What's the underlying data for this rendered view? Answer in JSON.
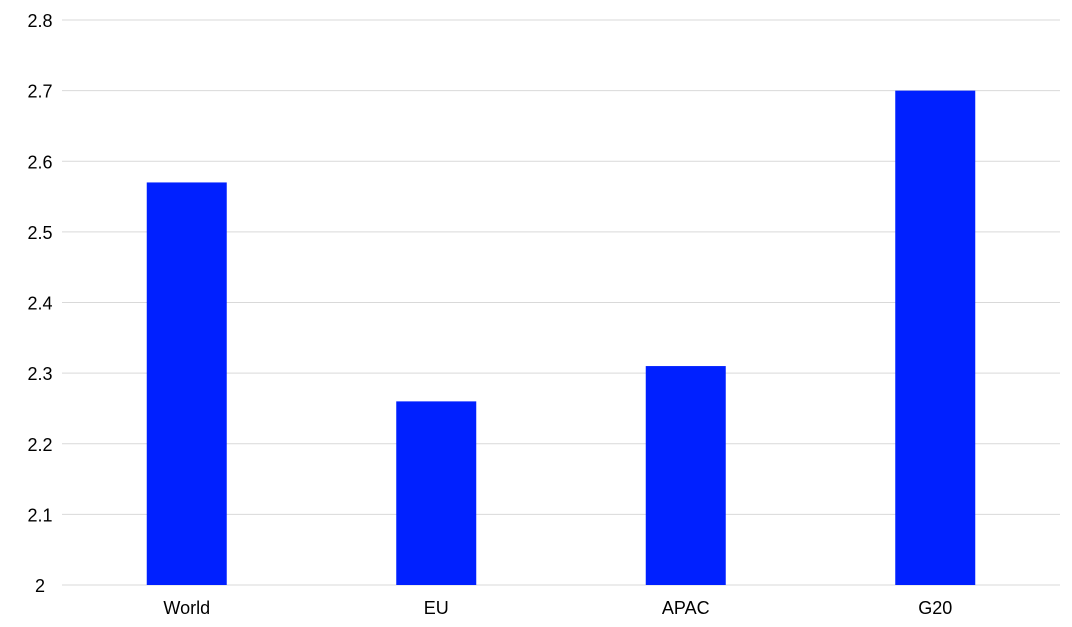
{
  "chart_data": {
    "type": "bar",
    "title": "",
    "xlabel": "",
    "ylabel": "",
    "categories": [
      "World",
      "EU",
      "APAC",
      "G20"
    ],
    "values": [
      2.57,
      2.26,
      2.31,
      2.7
    ],
    "ylim": [
      2,
      2.8
    ],
    "yticks": [
      "2",
      "2.1",
      "2.2",
      "2.3",
      "2.4",
      "2.5",
      "2.6",
      "2.7",
      "2.8"
    ],
    "grid": true,
    "legend": "none",
    "bar_color": "#0020ff"
  }
}
